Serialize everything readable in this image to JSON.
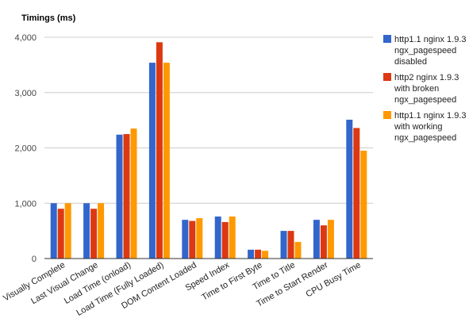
{
  "chart_data": {
    "type": "bar",
    "title": "Timings (ms)",
    "xlabel": "",
    "ylabel": "",
    "ylim": [
      0,
      4000
    ],
    "yticks": [
      0,
      1000,
      2000,
      3000,
      4000
    ],
    "ytick_labels": [
      "0",
      "1,000",
      "2,000",
      "3,000",
      "4,000"
    ],
    "grid": true,
    "legend_position": "right",
    "categories": [
      "Visually Complete",
      "Last Visual Change",
      "Load Time (onload)",
      "Load Time (Fully Loaded)",
      "DOM Content Loaded",
      "Speed Index",
      "Time to First Byte",
      "Time to Title",
      "Time to Start Render",
      "CPU Busy Time"
    ],
    "series": [
      {
        "name": "http1.1 nginx 1.9.3 ngx_pagespeed disabled",
        "legend_lines": [
          "http1.1 nginx 1.9.3",
          "ngx_pagespeed",
          "disabled"
        ],
        "color": "#3366cc",
        "values": [
          1000,
          1000,
          2240,
          3540,
          700,
          760,
          160,
          500,
          700,
          2510
        ]
      },
      {
        "name": "http2 nginx 1.9.3 with broken ngx_pagespeed",
        "legend_lines": [
          "http2 nginx 1.9.3",
          "with broken",
          "ngx_pagespeed"
        ],
        "color": "#dc3912",
        "values": [
          900,
          900,
          2250,
          3910,
          680,
          660,
          160,
          500,
          600,
          2360
        ]
      },
      {
        "name": "http1.1 nginx 1.9.3 with working ngx_pagespeed",
        "legend_lines": [
          "http1.1 nginx 1.9.3",
          "with working",
          "ngx_pagespeed"
        ],
        "color": "#ff9900",
        "values": [
          1000,
          1000,
          2350,
          3540,
          730,
          760,
          140,
          300,
          700,
          1950
        ]
      }
    ]
  }
}
